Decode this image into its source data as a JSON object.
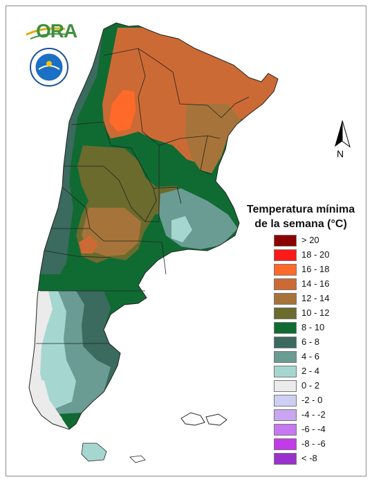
{
  "map": {
    "legend_title_line1": "Temperatura mínima",
    "legend_title_line2": "de la semana (°C)",
    "legend_items": [
      {
        "label": "> 20",
        "color": "#8b0000"
      },
      {
        "label": "18 - 20",
        "color": "#ff1a1a"
      },
      {
        "label": "16 - 18",
        "color": "#ff6a2a"
      },
      {
        "label": "14 - 16",
        "color": "#cc6a35"
      },
      {
        "label": "12 - 14",
        "color": "#a6743a"
      },
      {
        "label": "10 - 12",
        "color": "#6b6b2e"
      },
      {
        "label": "8 - 10",
        "color": "#0f6b32"
      },
      {
        "label": "6 - 8",
        "color": "#3b6a5e"
      },
      {
        "label": "4 - 6",
        "color": "#6a9c94"
      },
      {
        "label": "2 - 4",
        "color": "#a6d6d0"
      },
      {
        "label": "0 - 2",
        "color": "#ebebeb"
      },
      {
        "label": "-2 - 0",
        "color": "#cfcff5"
      },
      {
        "label": "-4 - -2",
        "color": "#c8a6f0"
      },
      {
        "label": "-6 - -4",
        "color": "#c877f2"
      },
      {
        "label": "-8 - -6",
        "color": "#c23be8"
      },
      {
        "label": "< -8",
        "color": "#9932cc"
      }
    ],
    "north_label": "N",
    "logo_text": "ORA",
    "institution_logo_icon": "smn-seal-icon"
  }
}
